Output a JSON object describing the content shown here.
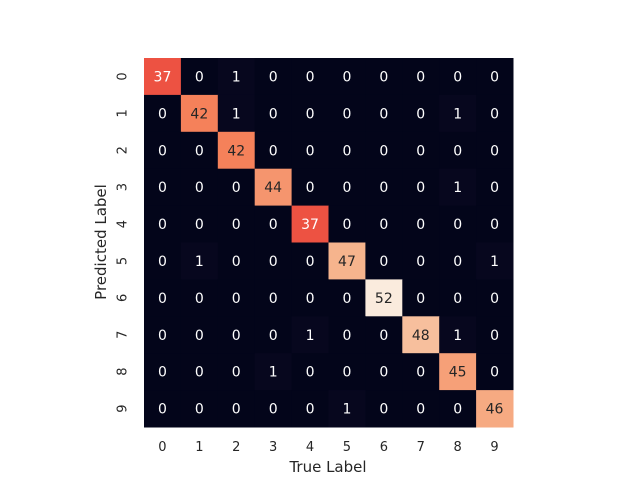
{
  "chart_data": {
    "type": "heatmap",
    "title": "",
    "xlabel": "True Label",
    "ylabel": "Predicted Label",
    "x_categories": [
      "0",
      "1",
      "2",
      "3",
      "4",
      "5",
      "6",
      "7",
      "8",
      "9"
    ],
    "y_categories": [
      "0",
      "1",
      "2",
      "3",
      "4",
      "5",
      "6",
      "7",
      "8",
      "9"
    ],
    "values": [
      [
        37,
        0,
        1,
        0,
        0,
        0,
        0,
        0,
        0,
        0
      ],
      [
        0,
        42,
        1,
        0,
        0,
        0,
        0,
        0,
        1,
        0
      ],
      [
        0,
        0,
        42,
        0,
        0,
        0,
        0,
        0,
        0,
        0
      ],
      [
        0,
        0,
        0,
        44,
        0,
        0,
        0,
        0,
        1,
        0
      ],
      [
        0,
        0,
        0,
        0,
        37,
        0,
        0,
        0,
        0,
        0
      ],
      [
        0,
        1,
        0,
        0,
        0,
        47,
        0,
        0,
        0,
        1
      ],
      [
        0,
        0,
        0,
        0,
        0,
        0,
        52,
        0,
        0,
        0
      ],
      [
        0,
        0,
        0,
        0,
        1,
        0,
        0,
        48,
        1,
        0
      ],
      [
        0,
        0,
        0,
        1,
        0,
        0,
        0,
        0,
        45,
        0
      ],
      [
        0,
        0,
        0,
        0,
        0,
        1,
        0,
        0,
        0,
        46
      ]
    ],
    "value_range": [
      0,
      52
    ],
    "colormap": "rocket",
    "colorbar": false,
    "grid": false,
    "annotations": true
  }
}
